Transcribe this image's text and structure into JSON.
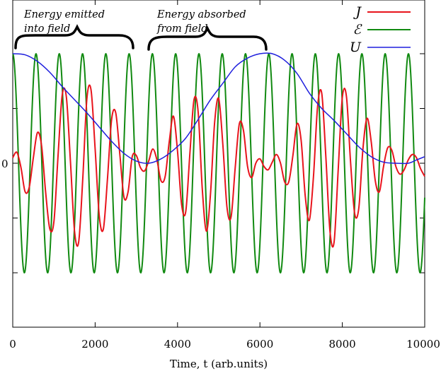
{
  "chart_data": {
    "type": "line",
    "xlabel": "Time, t (arb.units)",
    "ylabel": "",
    "xlim": [
      0,
      10000
    ],
    "ylim": [
      -1.45,
      1.0
    ],
    "x_ticks": [
      0,
      2000,
      4000,
      6000,
      8000,
      10000
    ],
    "x_tick_labels": [
      "0",
      "2000",
      "4000",
      "6000",
      "8000",
      "10000"
    ],
    "y_ticks": [
      0
    ],
    "y_tick_labels": [
      "0"
    ],
    "grid": false,
    "legend_position": "top-right",
    "annotations": [
      {
        "text_lines": [
          "Energy emitted",
          "into field"
        ],
        "x_start": 0,
        "x_end": 2900
      },
      {
        "text_lines": [
          "Energy absorbed",
          "from field"
        ],
        "x_start": 3300,
        "x_end": 6150
      }
    ],
    "series": [
      {
        "name": "J",
        "color": "#e8141c",
        "x": [
          0,
          100,
          200,
          300,
          400,
          500,
          600,
          700,
          800,
          900,
          1000,
          1100,
          1200,
          1300,
          1400,
          1500,
          1600,
          1700,
          1800,
          1900,
          2000,
          2100,
          2200,
          2300,
          2400,
          2500,
          2600,
          2700,
          2800,
          2900,
          3000,
          3100,
          3200,
          3300,
          3400,
          3500,
          3600,
          3700,
          3800,
          3900,
          4000,
          4100,
          4200,
          4300,
          4400,
          4500,
          4600,
          4700,
          4800,
          4900,
          5000,
          5100,
          5200,
          5300,
          5400,
          5500,
          5600,
          5700,
          5800,
          5900,
          6000,
          6100,
          6200,
          6300,
          6400,
          6500,
          6600,
          6700,
          6800,
          6900,
          7000,
          7100,
          7200,
          7300,
          7400,
          7500,
          7600,
          7700,
          7800,
          7900,
          8000,
          8100,
          8200,
          8300,
          8400,
          8500,
          8600,
          8700,
          8800,
          8900,
          9000,
          9100,
          9200,
          9300,
          9400,
          9500,
          9600,
          9700,
          9800,
          9900,
          10000
        ],
        "y": [
          0.05,
          0.1,
          -0.04,
          -0.26,
          -0.22,
          0.05,
          0.28,
          0.16,
          -0.27,
          -0.6,
          -0.53,
          0.07,
          0.62,
          0.61,
          0.02,
          -0.62,
          -0.72,
          -0.14,
          0.59,
          0.67,
          0.13,
          -0.48,
          -0.6,
          -0.14,
          0.4,
          0.46,
          0.08,
          -0.31,
          -0.26,
          0.06,
          0.07,
          -0.04,
          -0.07,
          0.02,
          0.13,
          0.03,
          -0.16,
          -0.12,
          0.2,
          0.43,
          0.11,
          -0.38,
          -0.44,
          0.09,
          0.58,
          0.47,
          -0.23,
          -0.62,
          -0.28,
          0.37,
          0.59,
          0.17,
          -0.4,
          -0.49,
          -0.04,
          0.36,
          0.3,
          -0.03,
          -0.13,
          0.0,
          0.04,
          -0.03,
          -0.06,
          0.01,
          0.08,
          0.0,
          -0.17,
          -0.17,
          0.07,
          0.36,
          0.21,
          -0.3,
          -0.52,
          -0.12,
          0.52,
          0.64,
          0.06,
          -0.62,
          -0.72,
          -0.06,
          0.6,
          0.61,
          0.01,
          -0.46,
          -0.41,
          0.13,
          0.41,
          0.2,
          -0.16,
          -0.26,
          -0.03,
          0.14,
          0.12,
          -0.03,
          -0.1,
          -0.06,
          0.03,
          0.08,
          0.05,
          -0.05,
          -0.12
        ]
      },
      {
        "name": "ℰ",
        "color": "#118a11",
        "amplitude": 1.0,
        "period": 565,
        "phase_start": "cos"
      },
      {
        "name": "U",
        "color": "#1f1fdd",
        "x": [
          0,
          300,
          600,
          900,
          1200,
          1500,
          1800,
          2100,
          2400,
          2700,
          3000,
          3300,
          3600,
          3900,
          4200,
          4500,
          4800,
          5100,
          5400,
          5700,
          6000,
          6300,
          6600,
          6900,
          7200,
          7500,
          7800,
          8100,
          8400,
          8700,
          9000,
          9300,
          9600,
          9800,
          10000
        ],
        "y": [
          1.0,
          0.99,
          0.93,
          0.83,
          0.7,
          0.58,
          0.46,
          0.33,
          0.2,
          0.09,
          0.02,
          0.0,
          0.04,
          0.12,
          0.23,
          0.4,
          0.58,
          0.73,
          0.88,
          0.96,
          1.0,
          1.0,
          0.94,
          0.82,
          0.64,
          0.5,
          0.39,
          0.27,
          0.15,
          0.06,
          0.01,
          0.0,
          0.0,
          0.03,
          0.06
        ]
      }
    ]
  }
}
